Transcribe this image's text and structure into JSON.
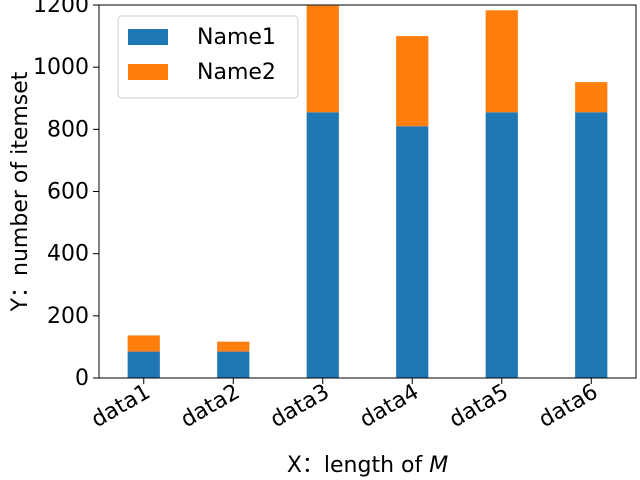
{
  "chart_data": {
    "type": "bar",
    "stacked": true,
    "categories": [
      "data1",
      "data2",
      "data3",
      "data4",
      "data5",
      "data6"
    ],
    "series": [
      {
        "name": "Name1",
        "color": "#1f77b4",
        "values": [
          85,
          85,
          855,
          810,
          855,
          855
        ]
      },
      {
        "name": "Name2",
        "color": "#ff7f0e",
        "values": [
          52,
          32,
          343,
          290,
          328,
          97
        ]
      }
    ],
    "xlabel": "X：length of M",
    "ylabel": "Y：number of itemset",
    "ylim": [
      0,
      1200
    ],
    "yticks": [
      0,
      200,
      400,
      600,
      800,
      1000,
      1200
    ],
    "legend_position": "upper-left",
    "grid": false
  }
}
